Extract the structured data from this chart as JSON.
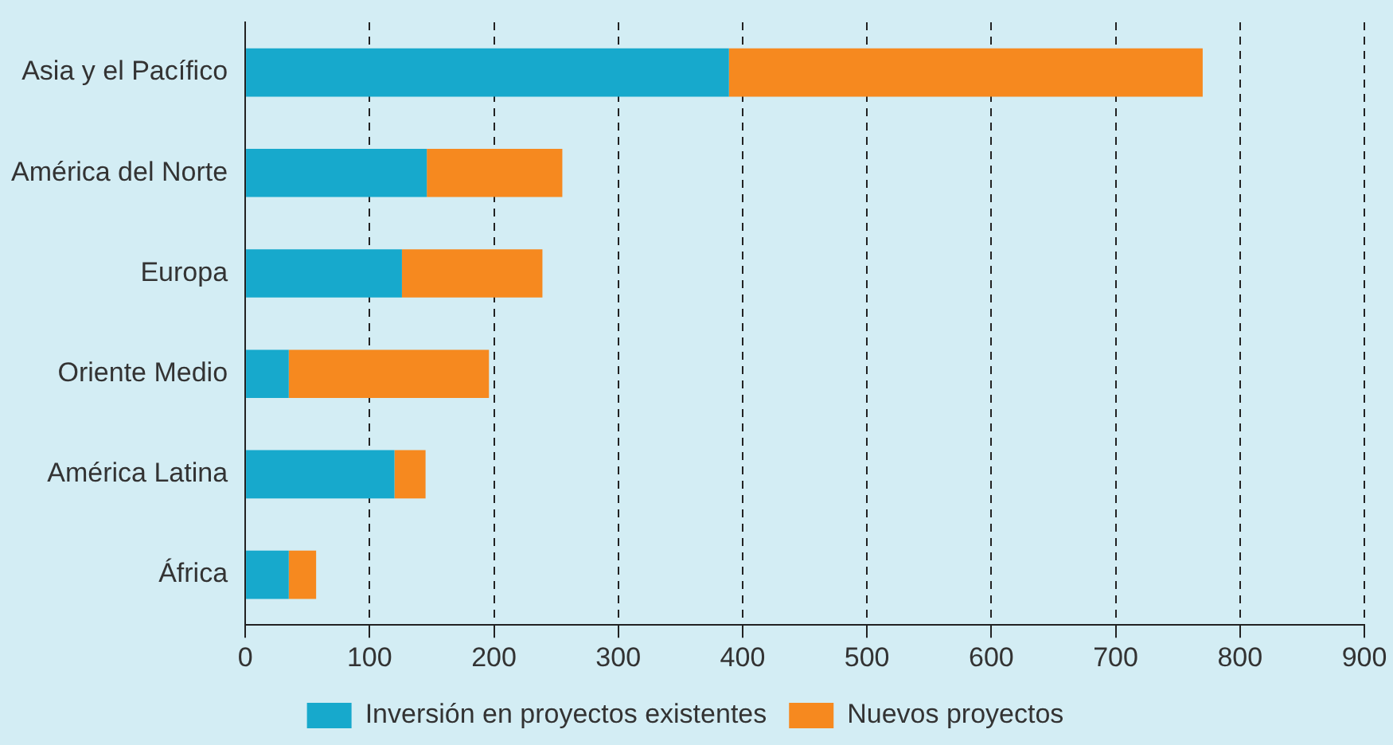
{
  "chart_data": {
    "type": "bar",
    "orientation": "horizontal",
    "stacked": true,
    "categories": [
      "Asia y el Pacífico",
      "América del Norte",
      "Europa",
      "Oriente Medio",
      "América Latina",
      "África"
    ],
    "series": [
      {
        "name": "Inversión en proyectos existentes",
        "color": "#17a9cc",
        "values": [
          389,
          146,
          126,
          35,
          120,
          35
        ]
      },
      {
        "name": "Nuevos proyectos",
        "color": "#f6891f",
        "values": [
          381,
          109,
          113,
          161,
          25,
          22
        ]
      }
    ],
    "xlim": [
      0,
      900
    ],
    "xticks": [
      0,
      100,
      200,
      300,
      400,
      500,
      600,
      700,
      800,
      900
    ],
    "grid": "x",
    "legend": "bottom"
  }
}
